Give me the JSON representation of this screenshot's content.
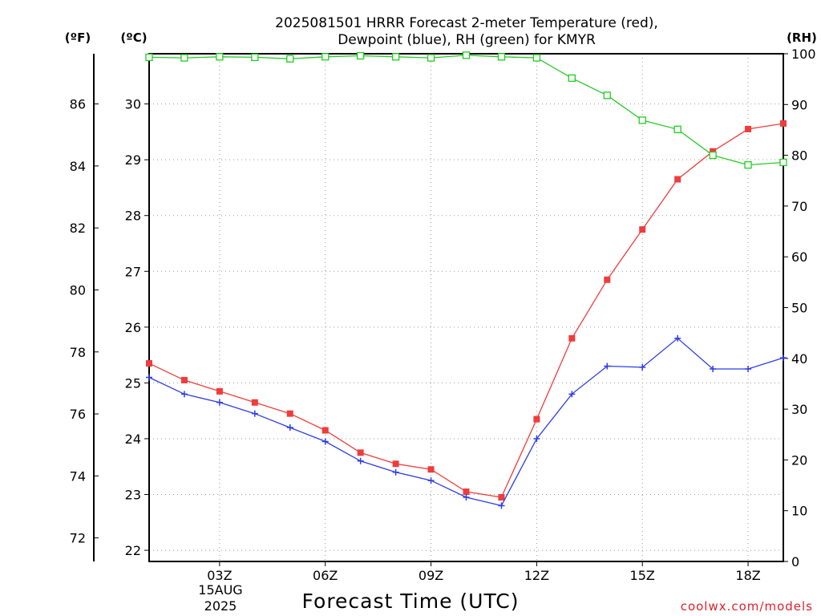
{
  "chart_data": {
    "type": "line",
    "title_line1": "2025081501 HRRR Forecast 2-meter Temperature (red),",
    "title_line2": "Dewpoint (blue), RH (green) for KMYR",
    "xlabel": "Forecast Time (UTC)",
    "credit": "coolwx.com/models",
    "unit_f": "(ºF)",
    "unit_c": "(ºC)",
    "unit_rh": "(RH)",
    "x_ticks": [
      {
        "hour": 3,
        "label": "03Z"
      },
      {
        "hour": 6,
        "label": "06Z"
      },
      {
        "hour": 9,
        "label": "09Z"
      },
      {
        "hour": 12,
        "label": "12Z"
      },
      {
        "hour": 15,
        "label": "15Z"
      },
      {
        "hour": 18,
        "label": "18Z"
      }
    ],
    "date_label_line1": "15AUG",
    "date_label_line2": "2025",
    "xlim": [
      1,
      19
    ],
    "ylim_c": [
      21.8,
      30.9
    ],
    "ylim_rh": [
      0,
      100
    ],
    "c_ticks": [
      22,
      23,
      24,
      25,
      26,
      27,
      28,
      29,
      30
    ],
    "f_ticks": [
      72,
      74,
      76,
      78,
      80,
      82,
      84,
      86
    ],
    "rh_ticks": [
      0,
      10,
      20,
      30,
      40,
      50,
      60,
      70,
      80,
      90,
      100
    ],
    "x": [
      1,
      2,
      3,
      4,
      5,
      6,
      7,
      8,
      9,
      10,
      11,
      12,
      13,
      14,
      15,
      16,
      17,
      18,
      19
    ],
    "series": [
      {
        "name": "Temperature",
        "axis": "c",
        "color": "#f03c3c",
        "marker": "filled-square",
        "values": [
          25.35,
          25.05,
          24.85,
          24.65,
          24.45,
          24.15,
          23.75,
          23.55,
          23.45,
          23.05,
          22.95,
          24.35,
          25.8,
          26.85,
          27.75,
          28.65,
          29.15,
          29.55,
          29.65
        ]
      },
      {
        "name": "Dewpoint",
        "axis": "c",
        "color": "#2f3ce6",
        "marker": "plus",
        "values": [
          25.1,
          24.8,
          24.65,
          24.45,
          24.2,
          23.95,
          23.6,
          23.4,
          23.25,
          22.95,
          22.8,
          24.0,
          24.8,
          25.3,
          25.28,
          25.8,
          25.25,
          25.25,
          25.45
        ]
      },
      {
        "name": "RH",
        "axis": "rh",
        "color": "#22cc22",
        "marker": "open-square",
        "values": [
          99.3,
          99.2,
          99.4,
          99.3,
          99.0,
          99.4,
          99.6,
          99.4,
          99.2,
          99.7,
          99.4,
          99.2,
          95.2,
          91.8,
          86.9,
          85.1,
          80.0,
          78.1,
          78.6
        ]
      }
    ]
  }
}
